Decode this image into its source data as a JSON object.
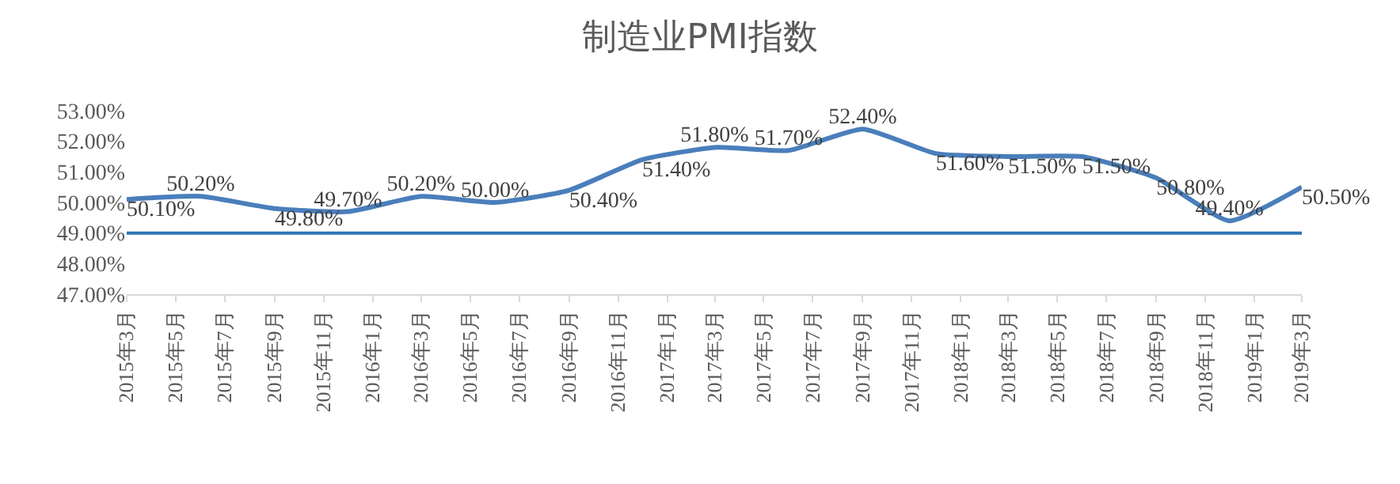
{
  "chart_data": {
    "type": "line",
    "title": "制造业PMI指数",
    "x": [
      "2015-03",
      "2015-06",
      "2015-09",
      "2015-12",
      "2016-03",
      "2016-06",
      "2016-09",
      "2016-12",
      "2017-03",
      "2017-06",
      "2017-09",
      "2017-12",
      "2018-03",
      "2018-06",
      "2018-09",
      "2018-12",
      "2019-03"
    ],
    "series": [
      {
        "color": "#4a7ebb",
        "values": [
          50.1,
          50.2,
          49.8,
          49.7,
          50.2,
          50.0,
          50.4,
          51.4,
          51.8,
          51.7,
          52.4,
          51.6,
          51.5,
          51.5,
          50.8,
          49.4,
          50.5
        ],
        "value_labels": [
          "50.10%",
          "50.20%",
          "49.80%",
          "49.70%",
          "50.20%",
          "50.00%",
          "50.40%",
          "51.40%",
          "51.80%",
          "51.70%",
          "52.40%",
          "51.60%",
          "51.50%",
          "51.50%",
          "50.80%",
          "49.40%",
          "50.50%"
        ]
      }
    ],
    "xlim": [
      "2015-03",
      "2019-03"
    ],
    "xticks": [
      {
        "value": "2015-03",
        "label": "2015年3月"
      },
      {
        "value": "2015-05",
        "label": "2015年5月"
      },
      {
        "value": "2015-07",
        "label": "2015年7月"
      },
      {
        "value": "2015-09",
        "label": "2015年9月"
      },
      {
        "value": "2015-11",
        "label": "2015年11月"
      },
      {
        "value": "2016-01",
        "label": "2016年1月"
      },
      {
        "value": "2016-03",
        "label": "2016年3月"
      },
      {
        "value": "2016-05",
        "label": "2016年5月"
      },
      {
        "value": "2016-07",
        "label": "2016年7月"
      },
      {
        "value": "2016-09",
        "label": "2016年9月"
      },
      {
        "value": "2016-11",
        "label": "2016年11月"
      },
      {
        "value": "2017-01",
        "label": "2017年1月"
      },
      {
        "value": "2017-03",
        "label": "2017年3月"
      },
      {
        "value": "2017-05",
        "label": "2017年5月"
      },
      {
        "value": "2017-07",
        "label": "2017年7月"
      },
      {
        "value": "2017-09",
        "label": "2017年9月"
      },
      {
        "value": "2017-11",
        "label": "2017年11月"
      },
      {
        "value": "2018-01",
        "label": "2018年1月"
      },
      {
        "value": "2018-03",
        "label": "2018年3月"
      },
      {
        "value": "2018-05",
        "label": "2018年5月"
      },
      {
        "value": "2018-07",
        "label": "2018年7月"
      },
      {
        "value": "2018-09",
        "label": "2018年9月"
      },
      {
        "value": "2018-11",
        "label": "2018年11月"
      },
      {
        "value": "2019-01",
        "label": "2019年1月"
      },
      {
        "value": "2019-03",
        "label": "2019年3月"
      }
    ],
    "ylim": [
      47,
      53
    ],
    "yticks": [
      {
        "value": 47,
        "label": "47.00%"
      },
      {
        "value": 48,
        "label": "48.00%"
      },
      {
        "value": 49,
        "label": "49.00%"
      },
      {
        "value": 50,
        "label": "50.00%"
      },
      {
        "value": 51,
        "label": "51.00%"
      },
      {
        "value": 52,
        "label": "52.00%"
      },
      {
        "value": 53,
        "label": "53.00%"
      }
    ],
    "ref_lines": [
      {
        "axis": "y",
        "value": 49,
        "color": "#2e75b6"
      }
    ],
    "grid": false,
    "marker": "none",
    "line_style": "solid"
  }
}
